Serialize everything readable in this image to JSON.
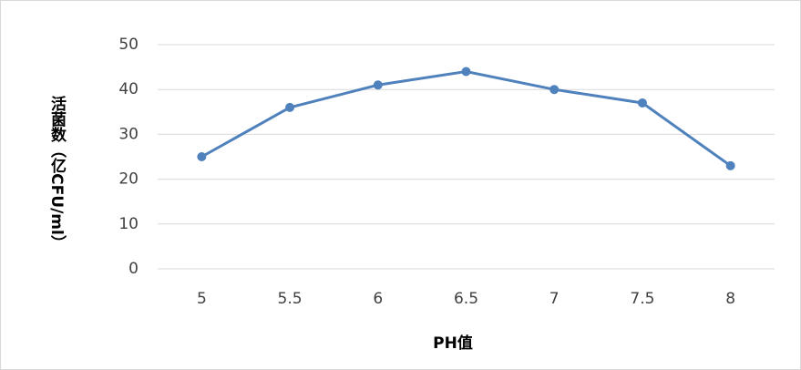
{
  "chart_data": {
    "type": "line",
    "x_label": "PH值",
    "y_label": "活菌数（亿CFU/ml）",
    "categories": [
      "5",
      "5.5",
      "6",
      "6.5",
      "7",
      "7.5",
      "8"
    ],
    "series": [
      {
        "name": "活菌数",
        "color": "#4f81bd",
        "values": [
          25,
          36,
          41,
          44,
          40,
          37,
          23
        ]
      }
    ],
    "ylim": [
      0,
      50
    ],
    "yticks": [
      0,
      10,
      20,
      30,
      40,
      50
    ],
    "grid": true
  }
}
